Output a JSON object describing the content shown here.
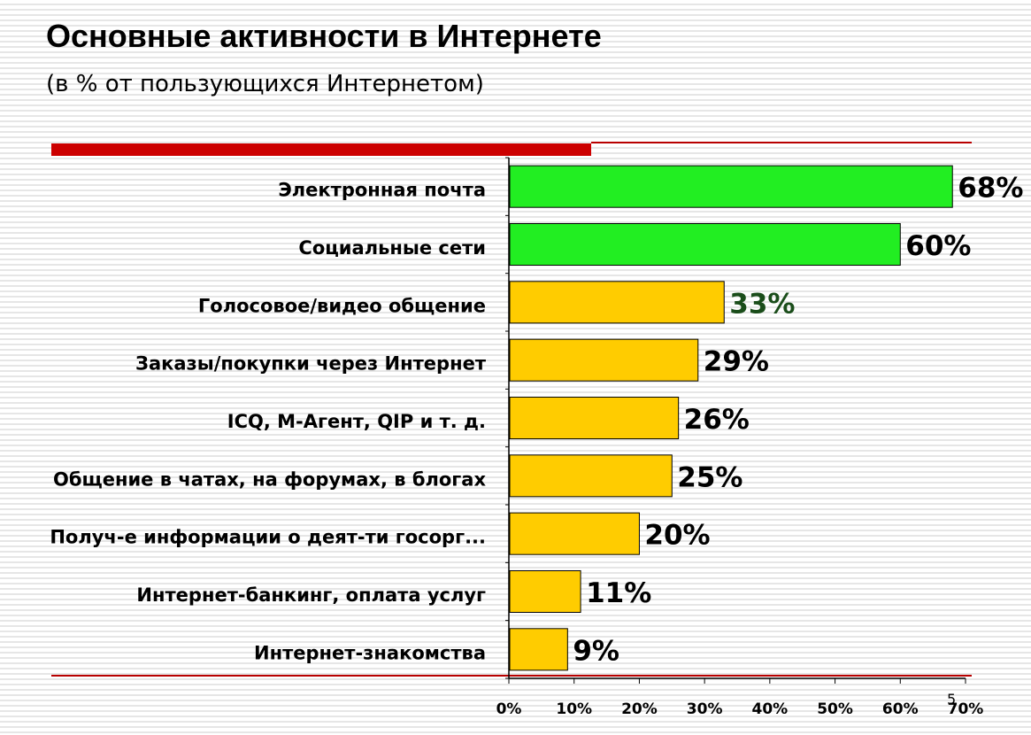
{
  "slide": {
    "title": "Основные активности в Интернете",
    "subtitle": "(в % от пользующихся Интернетом)",
    "page_number": "5",
    "accent_color": "#cc0000"
  },
  "chart_data": {
    "type": "bar",
    "orientation": "horizontal",
    "categories": [
      "Электронная почта",
      "Социальные сети",
      "Голосовое/видео общение",
      "Заказы/покупки через Интернет",
      "ICQ, М-Агент, QIP и т. д.",
      "Общение в чатах, на форумах, в блогах",
      "Получ-е информации о деят-ти госорг...",
      "Интернет-банкинг, оплата услуг",
      "Интернет-знакомства"
    ],
    "values": [
      68,
      60,
      33,
      29,
      26,
      25,
      20,
      11,
      9
    ],
    "value_labels": [
      "68%",
      "60%",
      "33%",
      "29%",
      "26%",
      "25%",
      "20%",
      "11%",
      "9%"
    ],
    "bar_colors": [
      "#22ee22",
      "#22ee22",
      "#ffcc00",
      "#ffcc00",
      "#ffcc00",
      "#ffcc00",
      "#ffcc00",
      "#ffcc00",
      "#ffcc00"
    ],
    "value_label_colors": [
      "#000000",
      "#000000",
      "#1a4d1a",
      "#000000",
      "#000000",
      "#000000",
      "#000000",
      "#000000",
      "#000000"
    ],
    "xlim": [
      0,
      70
    ],
    "xticks": [
      0,
      10,
      20,
      30,
      40,
      50,
      60,
      70
    ],
    "xtick_labels": [
      "0%",
      "10%",
      "20%",
      "30%",
      "40%",
      "50%",
      "60%",
      "70%"
    ],
    "xlabel": "",
    "ylabel": "",
    "grid": false,
    "legend": "none"
  }
}
